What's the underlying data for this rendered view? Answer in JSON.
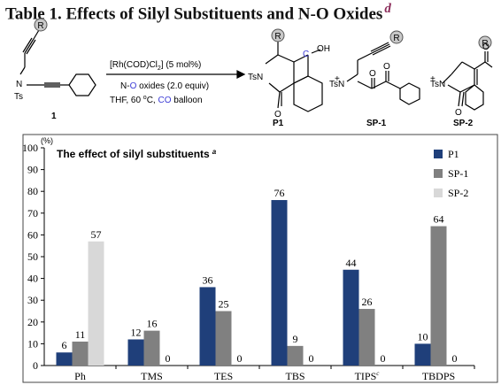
{
  "title": "Table 1. Effects of Silyl Substituents and N-O Oxides",
  "title_footnote": "d",
  "scheme": {
    "r_label": "R",
    "ts": "Ts",
    "n": "N",
    "compound_1": "1",
    "catalyst": "[Rh(COD)Cl",
    "catalyst_sub": "2",
    "catalyst_tail": "] (5 mol%)",
    "reagent_1": "N-",
    "reagent_2": "O",
    "reagent_3": " oxides (2.0 equiv)",
    "cond_1": "THF, 60 ",
    "cond_deg": "o",
    "cond_2": "C, ",
    "cond_co": "CO",
    "cond_3": " balloon",
    "p1_c": "C",
    "p1_oh": "OH",
    "p1_tsn": "TsN",
    "p1_o": "O",
    "plus": "+",
    "sp1_tsn": "TsN",
    "sp1_o": "O",
    "sp2_tsn": "TsN",
    "sp2_o": "O",
    "product_labels": [
      "P1",
      "SP-1",
      "SP-2"
    ],
    "colors": {
      "carbonyl_c": "#3b3bd6",
      "co_text": "#3b3bd6",
      "circle_fill": "#c8c8c8"
    }
  },
  "chart_data": {
    "type": "bar",
    "title": "The effect of silyl substituents",
    "title_footnote": "a",
    "title_color": "#7a1c4a",
    "categories": [
      "Ph",
      "TMS",
      "TES",
      "TBS",
      "TIPS",
      "TBDPS"
    ],
    "category_footnotes": [
      "",
      "",
      "",
      "",
      "c",
      ""
    ],
    "series": [
      {
        "name": "P1",
        "color": "#1f3f7a",
        "values": [
          6,
          12,
          36,
          76,
          44,
          10
        ]
      },
      {
        "name": "SP-1",
        "color": "#808080",
        "values": [
          11,
          16,
          25,
          9,
          26,
          64
        ]
      },
      {
        "name": "SP-2",
        "color": "#d8d8d8",
        "values": [
          57,
          0,
          0,
          0,
          0,
          0
        ]
      }
    ],
    "y_unit": "(%)",
    "ylim": [
      0,
      100
    ],
    "yticks": [
      0,
      10,
      20,
      30,
      40,
      50,
      60,
      70,
      80,
      90,
      100
    ],
    "grid": false,
    "legend": "top-right"
  }
}
